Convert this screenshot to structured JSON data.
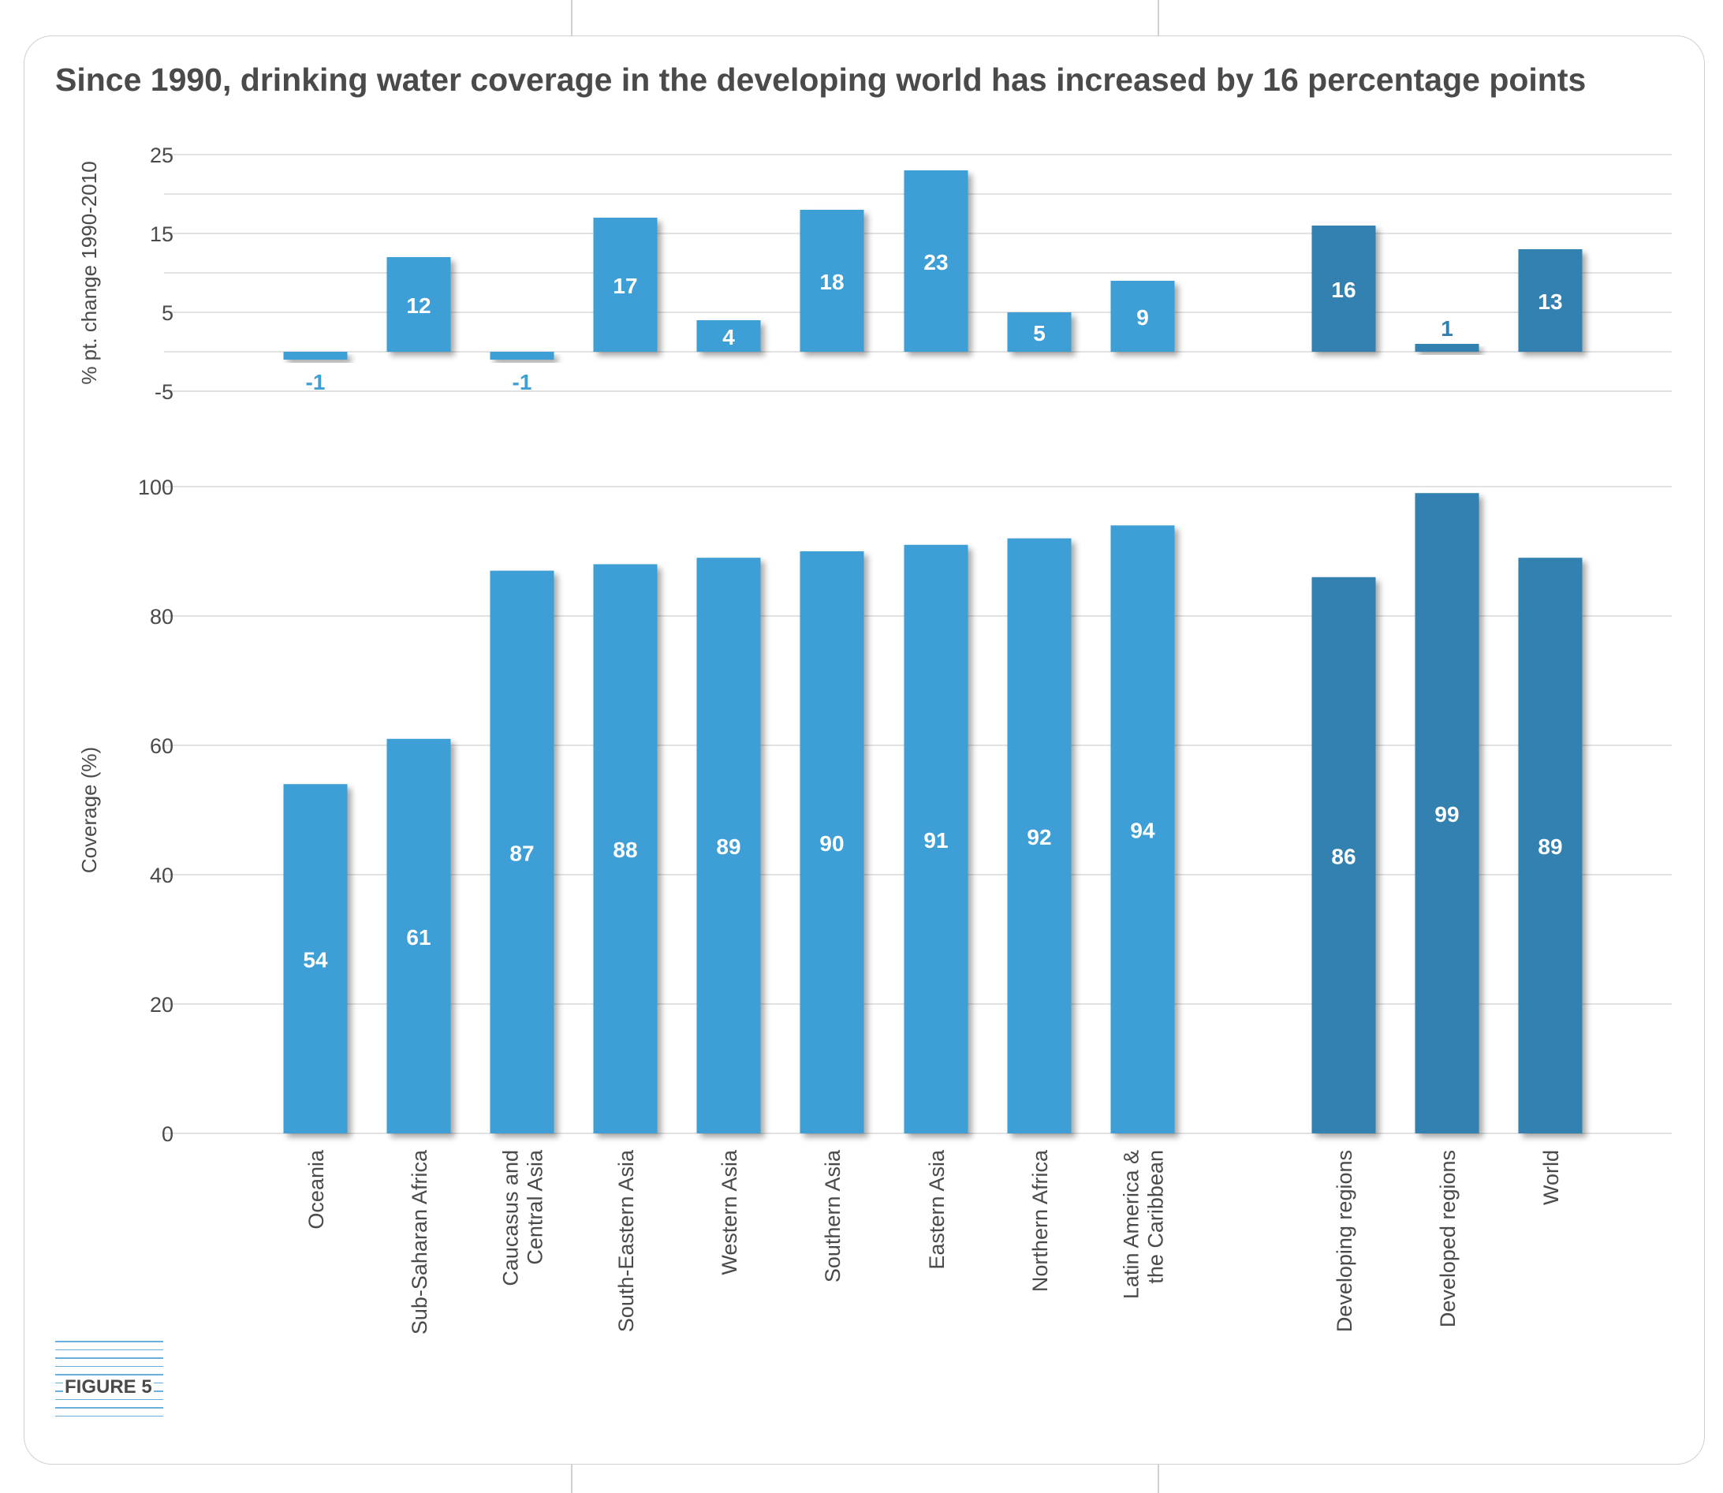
{
  "title": "Since 1990, drinking water coverage in the developing world has increased by 16 percentage points",
  "figure_label": "FIGURE 5",
  "colors": {
    "region": "#3e9fd5",
    "aggregate": "#3181b0",
    "grid": "#d9d9d9",
    "text": "#4a4a4a"
  },
  "chart_data": [
    {
      "type": "bar",
      "ylabel": "% pt. change 1990-2010",
      "ylim": [
        -5,
        25
      ],
      "yticks": [
        25,
        15,
        5,
        -5
      ],
      "categories": [
        "Oceania",
        "Sub-Saharan Africa",
        "Caucasus and Central Asia",
        "South-Eastern Asia",
        "Western Asia",
        "Southern Asia",
        "Eastern Asia",
        "Northern Africa",
        "Latin America & the Caribbean",
        "Developing regions",
        "Developed regions",
        "World"
      ],
      "values": [
        -1,
        12,
        -1,
        17,
        4,
        18,
        23,
        5,
        9,
        16,
        1,
        13
      ]
    },
    {
      "type": "bar",
      "ylabel": "Coverage (%)",
      "ylim": [
        0,
        100
      ],
      "yticks": [
        100,
        80,
        60,
        40,
        20,
        0
      ],
      "categories": [
        "Oceania",
        "Sub-Saharan Africa",
        "Caucasus and Central Asia",
        "South-Eastern Asia",
        "Western Asia",
        "Southern Asia",
        "Eastern Asia",
        "Northern Africa",
        "Latin America & the Caribbean",
        "Developing regions",
        "Developed regions",
        "World"
      ],
      "values": [
        54,
        61,
        87,
        88,
        89,
        90,
        91,
        92,
        94,
        86,
        99,
        89
      ]
    }
  ],
  "category_labels": [
    [
      "Oceania"
    ],
    [
      "Sub-Saharan Africa"
    ],
    [
      "Caucasus and",
      "Central Asia"
    ],
    [
      "South-Eastern Asia"
    ],
    [
      "Western Asia"
    ],
    [
      "Southern Asia"
    ],
    [
      "Eastern Asia"
    ],
    [
      "Northern Africa"
    ],
    [
      "Latin America &",
      "the Caribbean"
    ],
    [
      "Developing regions"
    ],
    [
      "Developed regions"
    ],
    [
      "World"
    ]
  ],
  "aggregate_categories": [
    "Developing regions",
    "Developed regions",
    "World"
  ]
}
